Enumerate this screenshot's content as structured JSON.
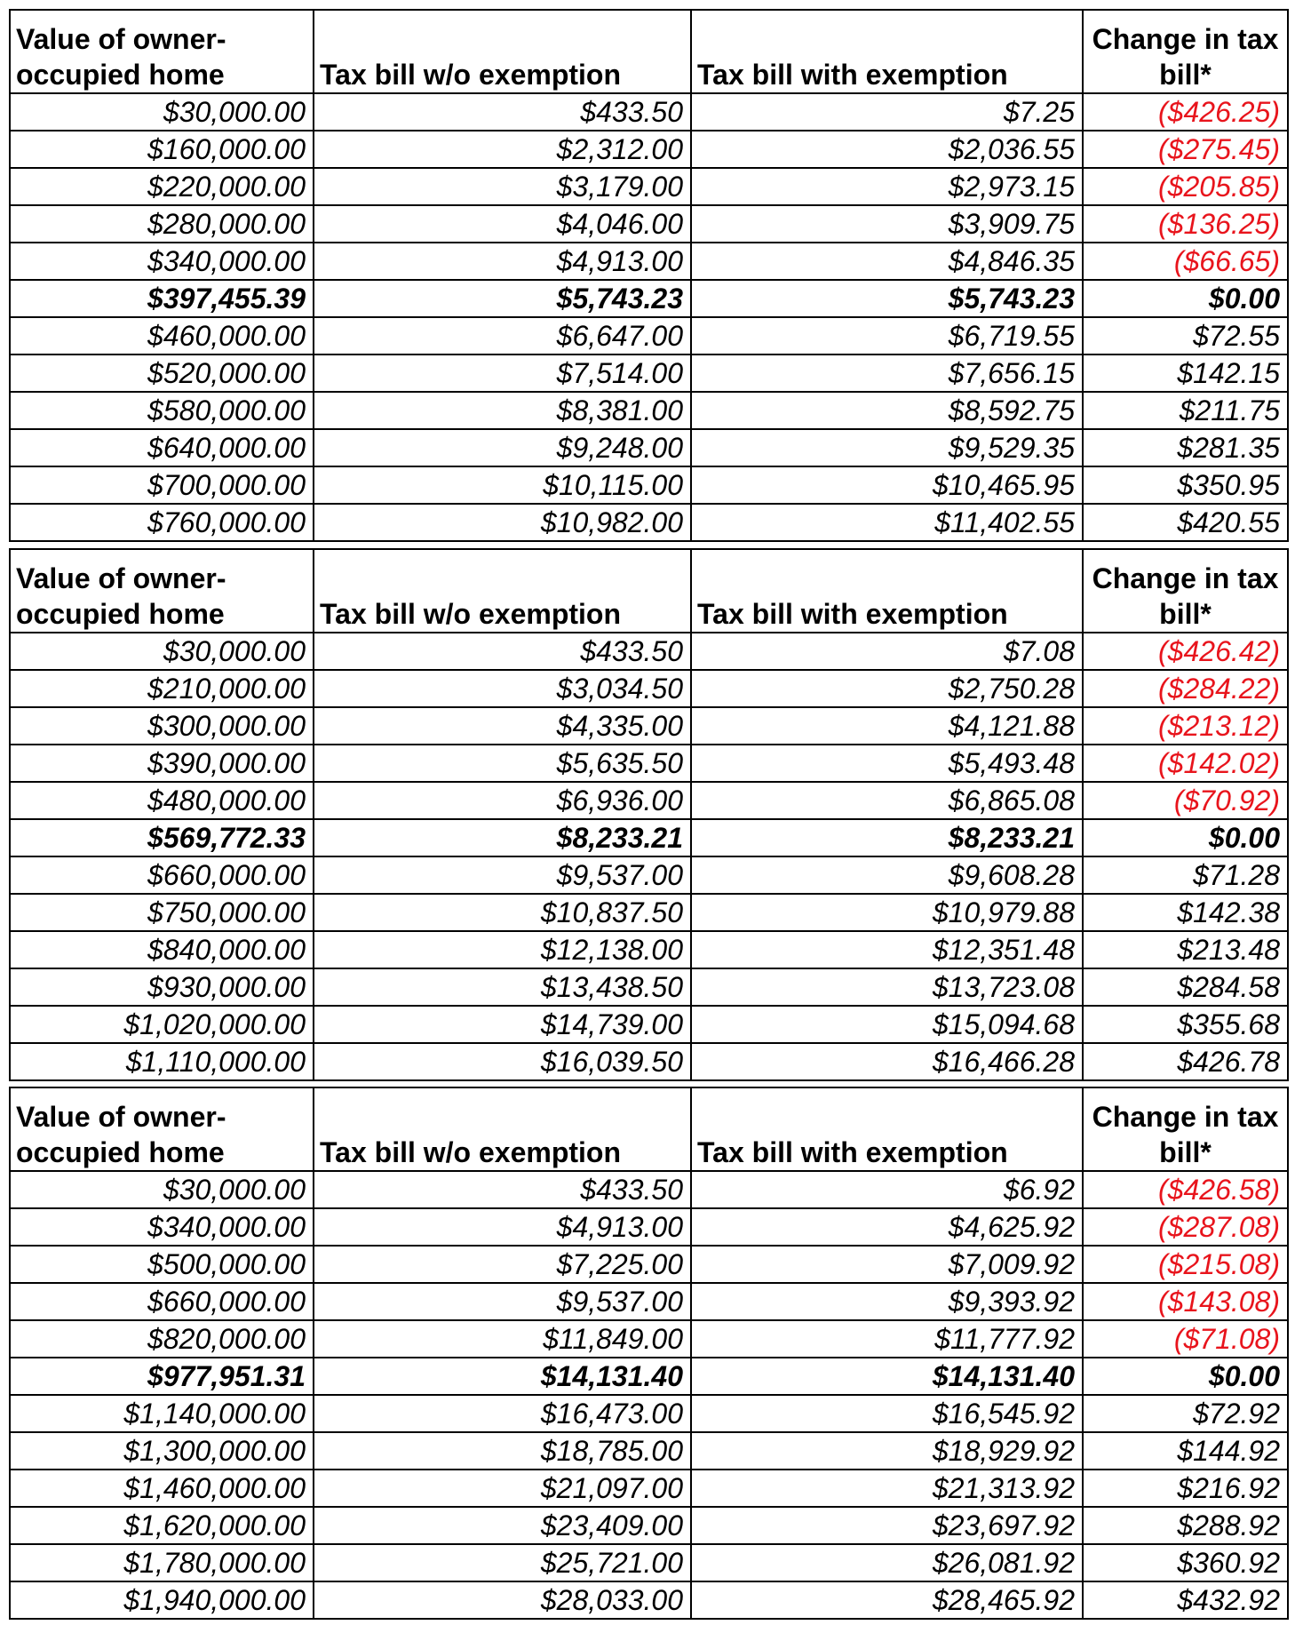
{
  "header": {
    "value_line1": "Value of owner-",
    "value_line2": "occupied home",
    "without": "Tax bill w/o exemption",
    "with": "Tax bill with exemption",
    "change_line1": "Change in tax",
    "change_line2": "bill*"
  },
  "colors": {
    "negative": "#e8141c",
    "text": "#000000"
  },
  "tables": [
    {
      "rows": [
        {
          "value": "$30,000.00",
          "without": "$433.50",
          "with": "$7.25",
          "change": "($426.25)",
          "negative": true
        },
        {
          "value": "$160,000.00",
          "without": "$2,312.00",
          "with": "$2,036.55",
          "change": "($275.45)",
          "negative": true
        },
        {
          "value": "$220,000.00",
          "without": "$3,179.00",
          "with": "$2,973.15",
          "change": "($205.85)",
          "negative": true
        },
        {
          "value": "$280,000.00",
          "without": "$4,046.00",
          "with": "$3,909.75",
          "change": "($136.25)",
          "negative": true
        },
        {
          "value": "$340,000.00",
          "without": "$4,913.00",
          "with": "$4,846.35",
          "change": "($66.65)",
          "negative": true
        },
        {
          "value": "$397,455.39",
          "without": "$5,743.23",
          "with": "$5,743.23",
          "change": "$0.00",
          "bold": true
        },
        {
          "value": "$460,000.00",
          "without": "$6,647.00",
          "with": "$6,719.55",
          "change": "$72.55"
        },
        {
          "value": "$520,000.00",
          "without": "$7,514.00",
          "with": "$7,656.15",
          "change": "$142.15"
        },
        {
          "value": "$580,000.00",
          "without": "$8,381.00",
          "with": "$8,592.75",
          "change": "$211.75"
        },
        {
          "value": "$640,000.00",
          "without": "$9,248.00",
          "with": "$9,529.35",
          "change": "$281.35"
        },
        {
          "value": "$700,000.00",
          "without": "$10,115.00",
          "with": "$10,465.95",
          "change": "$350.95"
        },
        {
          "value": "$760,000.00",
          "without": "$10,982.00",
          "with": "$11,402.55",
          "change": "$420.55"
        }
      ]
    },
    {
      "rows": [
        {
          "value": "$30,000.00",
          "without": "$433.50",
          "with": "$7.08",
          "change": "($426.42)",
          "negative": true
        },
        {
          "value": "$210,000.00",
          "without": "$3,034.50",
          "with": "$2,750.28",
          "change": "($284.22)",
          "negative": true
        },
        {
          "value": "$300,000.00",
          "without": "$4,335.00",
          "with": "$4,121.88",
          "change": "($213.12)",
          "negative": true
        },
        {
          "value": "$390,000.00",
          "without": "$5,635.50",
          "with": "$5,493.48",
          "change": "($142.02)",
          "negative": true
        },
        {
          "value": "$480,000.00",
          "without": "$6,936.00",
          "with": "$6,865.08",
          "change": "($70.92)",
          "negative": true
        },
        {
          "value": "$569,772.33",
          "without": "$8,233.21",
          "with": "$8,233.21",
          "change": "$0.00",
          "bold": true
        },
        {
          "value": "$660,000.00",
          "without": "$9,537.00",
          "with": "$9,608.28",
          "change": "$71.28"
        },
        {
          "value": "$750,000.00",
          "without": "$10,837.50",
          "with": "$10,979.88",
          "change": "$142.38"
        },
        {
          "value": "$840,000.00",
          "without": "$12,138.00",
          "with": "$12,351.48",
          "change": "$213.48"
        },
        {
          "value": "$930,000.00",
          "without": "$13,438.50",
          "with": "$13,723.08",
          "change": "$284.58"
        },
        {
          "value": "$1,020,000.00",
          "without": "$14,739.00",
          "with": "$15,094.68",
          "change": "$355.68"
        },
        {
          "value": "$1,110,000.00",
          "without": "$16,039.50",
          "with": "$16,466.28",
          "change": "$426.78"
        }
      ]
    },
    {
      "rows": [
        {
          "value": "$30,000.00",
          "without": "$433.50",
          "with": "$6.92",
          "change": "($426.58)",
          "negative": true
        },
        {
          "value": "$340,000.00",
          "without": "$4,913.00",
          "with": "$4,625.92",
          "change": "($287.08)",
          "negative": true
        },
        {
          "value": "$500,000.00",
          "without": "$7,225.00",
          "with": "$7,009.92",
          "change": "($215.08)",
          "negative": true
        },
        {
          "value": "$660,000.00",
          "without": "$9,537.00",
          "with": "$9,393.92",
          "change": "($143.08)",
          "negative": true
        },
        {
          "value": "$820,000.00",
          "without": "$11,849.00",
          "with": "$11,777.92",
          "change": "($71.08)",
          "negative": true
        },
        {
          "value": "$977,951.31",
          "without": "$14,131.40",
          "with": "$14,131.40",
          "change": "$0.00",
          "bold": true
        },
        {
          "value": "$1,140,000.00",
          "without": "$16,473.00",
          "with": "$16,545.92",
          "change": "$72.92"
        },
        {
          "value": "$1,300,000.00",
          "without": "$18,785.00",
          "with": "$18,929.92",
          "change": "$144.92"
        },
        {
          "value": "$1,460,000.00",
          "without": "$21,097.00",
          "with": "$21,313.92",
          "change": "$216.92"
        },
        {
          "value": "$1,620,000.00",
          "without": "$23,409.00",
          "with": "$23,697.92",
          "change": "$288.92"
        },
        {
          "value": "$1,780,000.00",
          "without": "$25,721.00",
          "with": "$26,081.92",
          "change": "$360.92"
        },
        {
          "value": "$1,940,000.00",
          "without": "$28,033.00",
          "with": "$28,465.92",
          "change": "$432.92"
        }
      ]
    }
  ]
}
